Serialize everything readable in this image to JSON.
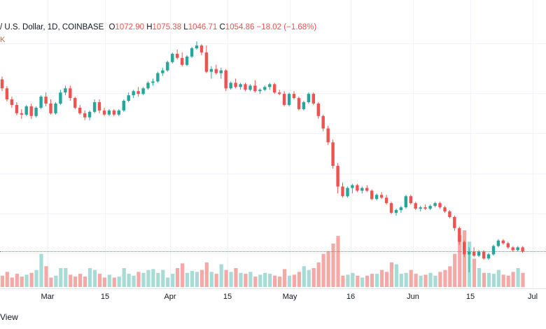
{
  "legend": {
    "pair": "/ U.S. Dollar, 1D, COINBASE",
    "open_label": "O",
    "open": "1072.90",
    "high_label": "H",
    "high": "1075.38",
    "low_label": "L",
    "low": "1046.71",
    "close_label": "C",
    "close": "1054.86",
    "change": "−18.02 (−1.68%)",
    "volume_fragment": "K"
  },
  "footer": {
    "view_label": "View"
  },
  "colors": {
    "up": "#26a69a",
    "down": "#ef5350",
    "up_volume": "#a7dcd6",
    "down_volume": "#f5a9a7"
  },
  "chart_data": {
    "type": "candlestick",
    "title": "",
    "x_tick_labels": [
      "Mar",
      "15",
      "Apr",
      "15",
      "May",
      "16",
      "Jun",
      "15",
      "Jul"
    ],
    "candles": [
      [
        2950,
        2990,
        2780,
        2820
      ],
      [
        2820,
        2850,
        2630,
        2660
      ],
      [
        2660,
        2700,
        2540,
        2580
      ],
      [
        2580,
        2620,
        2430,
        2460
      ],
      [
        2460,
        2520,
        2380,
        2440
      ],
      [
        2440,
        2580,
        2420,
        2560
      ],
      [
        2560,
        2600,
        2380,
        2420
      ],
      [
        2420,
        2560,
        2400,
        2540
      ],
      [
        2540,
        2720,
        2520,
        2700
      ],
      [
        2700,
        2760,
        2560,
        2600
      ],
      [
        2600,
        2660,
        2440,
        2460
      ],
      [
        2460,
        2620,
        2440,
        2600
      ],
      [
        2600,
        2800,
        2580,
        2760
      ],
      [
        2760,
        2860,
        2720,
        2820
      ],
      [
        2820,
        2860,
        2640,
        2680
      ],
      [
        2680,
        2700,
        2520,
        2540
      ],
      [
        2540,
        2580,
        2440,
        2460
      ],
      [
        2460,
        2500,
        2360,
        2400
      ],
      [
        2400,
        2500,
        2360,
        2480
      ],
      [
        2480,
        2660,
        2460,
        2620
      ],
      [
        2620,
        2660,
        2460,
        2500
      ],
      [
        2500,
        2540,
        2420,
        2440
      ],
      [
        2440,
        2520,
        2420,
        2500
      ],
      [
        2500,
        2520,
        2420,
        2440
      ],
      [
        2440,
        2520,
        2420,
        2500
      ],
      [
        2500,
        2660,
        2480,
        2640
      ],
      [
        2640,
        2760,
        2620,
        2720
      ],
      [
        2720,
        2800,
        2680,
        2780
      ],
      [
        2780,
        2840,
        2700,
        2740
      ],
      [
        2740,
        2840,
        2720,
        2820
      ],
      [
        2820,
        2920,
        2800,
        2900
      ],
      [
        2900,
        2960,
        2860,
        2920
      ],
      [
        2920,
        3060,
        2900,
        3040
      ],
      [
        3040,
        3120,
        3000,
        3080
      ],
      [
        3080,
        3220,
        3060,
        3200
      ],
      [
        3200,
        3340,
        3180,
        3320
      ],
      [
        3320,
        3380,
        3240,
        3260
      ],
      [
        3260,
        3340,
        3140,
        3160
      ],
      [
        3160,
        3300,
        3140,
        3280
      ],
      [
        3280,
        3420,
        3260,
        3400
      ],
      [
        3400,
        3500,
        3380,
        3440
      ],
      [
        3440,
        3460,
        3300,
        3340
      ],
      [
        3340,
        3440,
        3040,
        3060
      ],
      [
        3060,
        3140,
        2960,
        3100
      ],
      [
        3100,
        3160,
        3020,
        3040
      ],
      [
        3040,
        3120,
        2960,
        3080
      ],
      [
        3080,
        3100,
        2780,
        2820
      ],
      [
        2820,
        2920,
        2800,
        2900
      ],
      [
        2900,
        2960,
        2820,
        2840
      ],
      [
        2840,
        2900,
        2800,
        2880
      ],
      [
        2880,
        2900,
        2780,
        2800
      ],
      [
        2800,
        2880,
        2780,
        2860
      ],
      [
        2860,
        2940,
        2760,
        2780
      ],
      [
        2780,
        2820,
        2740,
        2800
      ],
      [
        2800,
        2860,
        2780,
        2840
      ],
      [
        2840,
        2900,
        2800,
        2880
      ],
      [
        2880,
        2900,
        2740,
        2760
      ],
      [
        2760,
        2800,
        2720,
        2740
      ],
      [
        2740,
        2780,
        2560,
        2580
      ],
      [
        2580,
        2760,
        2560,
        2740
      ],
      [
        2740,
        2780,
        2660,
        2680
      ],
      [
        2680,
        2700,
        2500,
        2520
      ],
      [
        2520,
        2640,
        2500,
        2620
      ],
      [
        2620,
        2760,
        2600,
        2740
      ],
      [
        2740,
        2760,
        2580,
        2600
      ],
      [
        2600,
        2620,
        2380,
        2420
      ],
      [
        2420,
        2440,
        2200,
        2240
      ],
      [
        2240,
        2280,
        2000,
        2040
      ],
      [
        2040,
        2080,
        1660,
        1700
      ],
      [
        1700,
        1740,
        1300,
        1400
      ],
      [
        1400,
        1460,
        1240,
        1260
      ],
      [
        1260,
        1400,
        1240,
        1380
      ],
      [
        1380,
        1440,
        1300,
        1420
      ],
      [
        1420,
        1440,
        1320,
        1340
      ],
      [
        1340,
        1400,
        1300,
        1380
      ],
      [
        1380,
        1420,
        1320,
        1340
      ],
      [
        1340,
        1360,
        1200,
        1220
      ],
      [
        1220,
        1300,
        1200,
        1280
      ],
      [
        1280,
        1320,
        1220,
        1240
      ],
      [
        1240,
        1280,
        1140,
        1160
      ],
      [
        1160,
        1180,
        1000,
        1020
      ],
      [
        1020,
        1080,
        980,
        1060
      ],
      [
        1060,
        1120,
        1020,
        1100
      ],
      [
        1100,
        1280,
        1080,
        1260
      ],
      [
        1260,
        1280,
        1140,
        1160
      ],
      [
        1160,
        1180,
        1060,
        1080
      ],
      [
        1080,
        1120,
        1040,
        1100
      ],
      [
        1100,
        1140,
        1060,
        1080
      ],
      [
        1080,
        1140,
        1060,
        1120
      ],
      [
        1120,
        1180,
        1100,
        1160
      ],
      [
        1160,
        1180,
        1080,
        1100
      ],
      [
        1100,
        1120,
        1020,
        1040
      ],
      [
        1040,
        1060,
        940,
        960
      ],
      [
        960,
        980,
        760,
        800
      ],
      [
        800,
        820,
        560,
        600
      ],
      [
        600,
        620,
        380,
        420
      ],
      [
        420,
        520,
        160,
        460
      ],
      [
        460,
        520,
        380,
        400
      ],
      [
        400,
        480,
        380,
        460
      ],
      [
        460,
        480,
        340,
        360
      ],
      [
        360,
        440,
        340,
        420
      ],
      [
        420,
        560,
        400,
        540
      ],
      [
        540,
        640,
        520,
        620
      ],
      [
        620,
        640,
        560,
        580
      ],
      [
        580,
        600,
        500,
        520
      ],
      [
        520,
        540,
        460,
        480
      ],
      [
        480,
        540,
        460,
        520
      ],
      [
        520,
        540,
        440,
        460
      ]
    ],
    "volumes": [
      1.2,
      1.6,
      1.0,
      1.4,
      1.1,
      1.3,
      1.5,
      1.8,
      3.5,
      2.2,
      1.0,
      1.2,
      2.0,
      2.0,
      1.3,
      1.1,
      1.4,
      1.1,
      2.0,
      1.8,
      1.4,
      1.0,
      1.3,
      1.0,
      1.1,
      2.0,
      1.4,
      1.2,
      1.6,
      1.5,
      1.8,
      1.9,
      1.5,
      1.8,
      1.0,
      1.4,
      2.0,
      2.5,
      1.5,
      1.7,
      1.6,
      1.8,
      2.6,
      1.6,
      1.4,
      2.4,
      1.8,
      1.6,
      2.0,
      1.5,
      1.4,
      1.6,
      1.1,
      1.3,
      1.5,
      1.4,
      1.2,
      1.1,
      1.9,
      1.2,
      1.3,
      1.6,
      2.2,
      1.8,
      2.0,
      2.6,
      3.5,
      3.8,
      4.6,
      5.4,
      1.2,
      1.3,
      1.5,
      1.2,
      1.0,
      1.2,
      1.4,
      1.4,
      1.8,
      1.6,
      2.6,
      2.4,
      1.4,
      1.5,
      1.8,
      1.4,
      1.2,
      1.3,
      1.5,
      1.2,
      1.6,
      1.8,
      2.2,
      3.5,
      5.5,
      6.0,
      4.8,
      3.0,
      2.0,
      1.5,
      1.5,
      1.4,
      1.8,
      1.3,
      1.2,
      1.6,
      2.0,
      1.5
    ]
  }
}
